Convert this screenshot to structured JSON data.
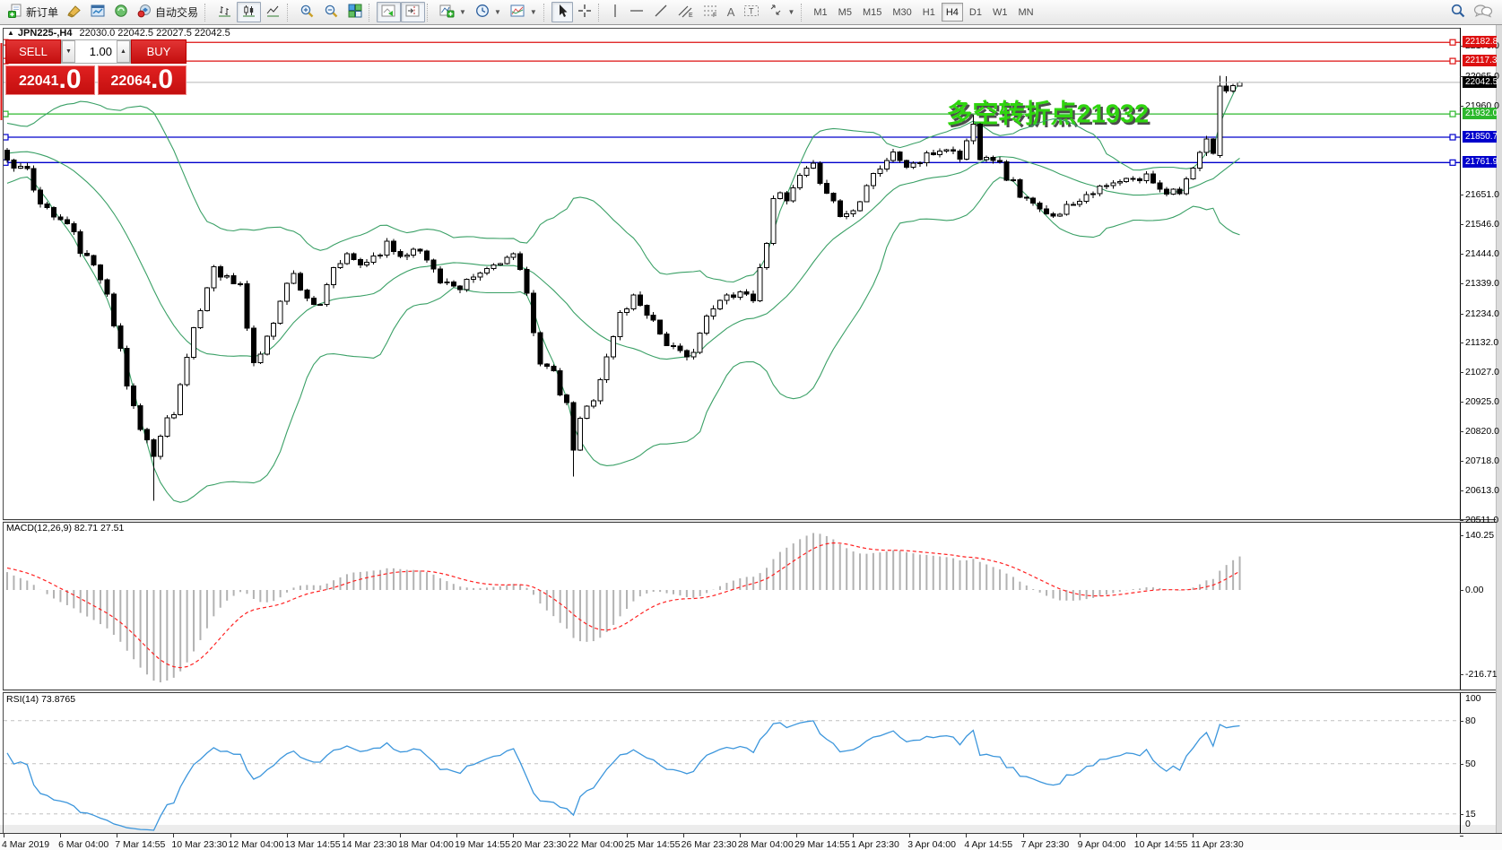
{
  "toolbar": {
    "new_order_label": "新订单",
    "auto_trading_label": "自动交易",
    "timeframes": [
      "M1",
      "M5",
      "M15",
      "M30",
      "H1",
      "H4",
      "D1",
      "W1",
      "MN"
    ],
    "active_timeframe": "H4",
    "text_tool_label": "A"
  },
  "chart_header": {
    "collapse_arrow": "▲",
    "symbol_period": "JPN225-,H4",
    "ohlc_text": "22030.0 22042.5 22027.5 22042.5"
  },
  "trade_panel": {
    "sell_label": "SELL",
    "buy_label": "BUY",
    "volume": "1.00",
    "spinner_down": "▼",
    "spinner_up": "▲",
    "sell_int": "22041",
    "sell_frac": ".0",
    "buy_int": "22064",
    "buy_frac": ".0"
  },
  "panels": {
    "macd_label": "MACD(12,26,9) 82.71 27.51",
    "rsi_label": "RSI(14) 73.8765"
  },
  "annotation": {
    "text": "多空转折点21932"
  },
  "colors": {
    "up_candle": "#ffffff",
    "down_candle": "#000000",
    "candle_outline": "#000000",
    "bollinger": "#3aa066",
    "hline_red": "#dd1111",
    "hline_green": "#2db82d",
    "hline_blue": "#0000cc",
    "current_price_line": "#b8b8b8",
    "current_badge": "#000000",
    "macd_histogram": "#b2b2b2",
    "macd_signal": "#ff2020",
    "rsi_line": "#3c96dc",
    "rsi_levels": "#c0c0c0",
    "annotation_green": "#2fd40f",
    "annotation_shadow": "#4d4d4d",
    "panel_red": "#d21414"
  },
  "chart_data": {
    "type": "candlestick-ohlc",
    "symbol": "JPN225-",
    "timeframe": "H4",
    "last_candle": {
      "open": 22030.0,
      "high": 22042.5,
      "low": 22027.5,
      "close": 22042.5
    },
    "bid": "22041.0",
    "ask": "22064.0",
    "price_axis_ticks": [
      22170,
      22065,
      21960,
      21651,
      21546,
      21444,
      21339,
      21234,
      21132,
      21027,
      20925,
      20820,
      20718,
      20613,
      20511
    ],
    "price_badges": [
      {
        "label": "22182.8",
        "value": 22182.8,
        "color": "#dd1111"
      },
      {
        "label": "22117.3",
        "value": 22117.3,
        "color": "#dd1111"
      },
      {
        "label": "22042.5",
        "value": 22042.5,
        "color": "#000000"
      },
      {
        "label": "21932.0",
        "value": 21932.0,
        "color": "#2db82d"
      },
      {
        "label": "21850.7",
        "value": 21850.7,
        "color": "#0000cc"
      },
      {
        "label": "21761.9",
        "value": 21761.9,
        "color": "#0000cc"
      }
    ],
    "hlines": [
      {
        "value": 22182.8,
        "color": "#dd1111"
      },
      {
        "value": 22117.3,
        "color": "#dd1111"
      },
      {
        "value": 21932.0,
        "color": "#2db82d"
      },
      {
        "value": 21850.7,
        "color": "#0000cc"
      },
      {
        "value": 21761.9,
        "color": "#0000cc"
      }
    ],
    "current_price": 22042.5,
    "indicators": {
      "bollinger": {
        "period": 20,
        "deviation": 2
      },
      "macd": {
        "fast": 12,
        "slow": 26,
        "signal": 9,
        "last_main": 82.71,
        "last_signal": 27.51
      },
      "rsi": {
        "period": 14,
        "last": 73.8765,
        "levels": [
          80,
          50,
          15
        ]
      }
    },
    "macd_axis": [
      {
        "label": "140.25",
        "value": 140.25
      },
      {
        "label": "0.00",
        "value": 0
      },
      {
        "label": "-216.71",
        "value": -216.71
      }
    ],
    "rsi_axis": [
      {
        "label": "100",
        "value": 100
      },
      {
        "label": "80",
        "value": 80
      },
      {
        "label": "50",
        "value": 50
      },
      {
        "label": "15",
        "value": 15
      },
      {
        "label": "0",
        "value": 0
      }
    ],
    "time_labels": [
      "4 Mar 2019",
      "6 Mar 04:00",
      "7 Mar 14:55",
      "10 Mar 23:30",
      "12 Mar 04:00",
      "13 Mar 14:55",
      "14 Mar 23:30",
      "18 Mar 04:00",
      "19 Mar 14:55",
      "20 Mar 23:30",
      "22 Mar 04:00",
      "25 Mar 14:55",
      "26 Mar 23:30",
      "28 Mar 04:00",
      "29 Mar 14:55",
      "1 Apr 23:30",
      "3 Apr 04:00",
      "4 Apr 14:55",
      "7 Apr 23:30",
      "9 Apr 04:00",
      "10 Apr 14:55",
      "11 Apr 23:30"
    ],
    "candles": {
      "count": 186,
      "prehistory": 30,
      "close_path": [
        [
          -30,
          21560
        ],
        [
          -22,
          21640
        ],
        [
          -15,
          21750
        ],
        [
          -9,
          21840
        ],
        [
          -5,
          21860
        ],
        [
          -2,
          21820
        ],
        [
          0,
          21781
        ],
        [
          3,
          21718
        ],
        [
          6,
          21592
        ],
        [
          9,
          21545
        ],
        [
          12,
          21420
        ],
        [
          15,
          21325
        ],
        [
          18,
          20980
        ],
        [
          20,
          20839
        ],
        [
          21,
          20792
        ],
        [
          22,
          20725
        ],
        [
          23,
          20823
        ],
        [
          25,
          20901
        ],
        [
          27,
          21074
        ],
        [
          29,
          21247
        ],
        [
          31,
          21404
        ],
        [
          33,
          21357
        ],
        [
          35,
          21325
        ],
        [
          37,
          21059
        ],
        [
          39,
          21137
        ],
        [
          41,
          21294
        ],
        [
          43,
          21372
        ],
        [
          45,
          21294
        ],
        [
          47,
          21247
        ],
        [
          49,
          21388
        ],
        [
          51,
          21435
        ],
        [
          53,
          21404
        ],
        [
          55,
          21435
        ],
        [
          57,
          21482
        ],
        [
          59,
          21435
        ],
        [
          61,
          21466
        ],
        [
          63,
          21419
        ],
        [
          65,
          21357
        ],
        [
          68,
          21310
        ],
        [
          70,
          21357
        ],
        [
          72,
          21388
        ],
        [
          74,
          21419
        ],
        [
          76,
          21435
        ],
        [
          78,
          21294
        ],
        [
          80,
          21074
        ],
        [
          82,
          21011
        ],
        [
          84,
          20901
        ],
        [
          85,
          20760
        ],
        [
          86,
          20855
        ],
        [
          88,
          20949
        ],
        [
          90,
          21074
        ],
        [
          92,
          21231
        ],
        [
          94,
          21294
        ],
        [
          96,
          21247
        ],
        [
          98,
          21168
        ],
        [
          100,
          21106
        ],
        [
          102,
          21074
        ],
        [
          104,
          21168
        ],
        [
          106,
          21247
        ],
        [
          108,
          21294
        ],
        [
          110,
          21310
        ],
        [
          112,
          21294
        ],
        [
          113,
          21380
        ],
        [
          114,
          21500
        ],
        [
          115,
          21655
        ],
        [
          117,
          21624
        ],
        [
          119,
          21702
        ],
        [
          121,
          21749
        ],
        [
          123,
          21671
        ],
        [
          125,
          21577
        ],
        [
          127,
          21592
        ],
        [
          129,
          21702
        ],
        [
          131,
          21749
        ],
        [
          133,
          21796
        ],
        [
          135,
          21749
        ],
        [
          137,
          21765
        ],
        [
          139,
          21796
        ],
        [
          141,
          21812
        ],
        [
          143,
          21781
        ],
        [
          145,
          21891
        ],
        [
          146,
          21796
        ],
        [
          148,
          21781
        ],
        [
          150,
          21718
        ],
        [
          152,
          21655
        ],
        [
          154,
          21608
        ],
        [
          156,
          21577
        ],
        [
          158,
          21592
        ],
        [
          160,
          21624
        ],
        [
          162,
          21655
        ],
        [
          164,
          21671
        ],
        [
          166,
          21686
        ],
        [
          168,
          21702
        ],
        [
          170,
          21702
        ],
        [
          171,
          21718
        ],
        [
          172,
          21700
        ],
        [
          174,
          21660
        ],
        [
          176,
          21671
        ],
        [
          178,
          21733
        ],
        [
          179,
          21790
        ],
        [
          180,
          21844
        ],
        [
          181,
          21787
        ],
        [
          182,
          22029
        ],
        [
          183,
          22012
        ],
        [
          184,
          22031
        ],
        [
          185,
          22042.5
        ]
      ],
      "overrides": {
        "22": {
          "low": 20578
        },
        "85": {
          "low": 20662
        },
        "145": {
          "high": 21930
        },
        "180": {
          "high": 21856
        },
        "182": {
          "open": 21787,
          "close": 22029,
          "high": 22066,
          "low": 21779
        },
        "183": {
          "open": 22029,
          "close": 22012,
          "high": 22064,
          "low": 22004
        },
        "184": {
          "open": 22012,
          "close": 22031,
          "high": 22038,
          "low": 22006
        },
        "185": {
          "open": 22030,
          "high": 22042.5,
          "low": 22027.5,
          "close": 22042.5
        }
      }
    }
  }
}
